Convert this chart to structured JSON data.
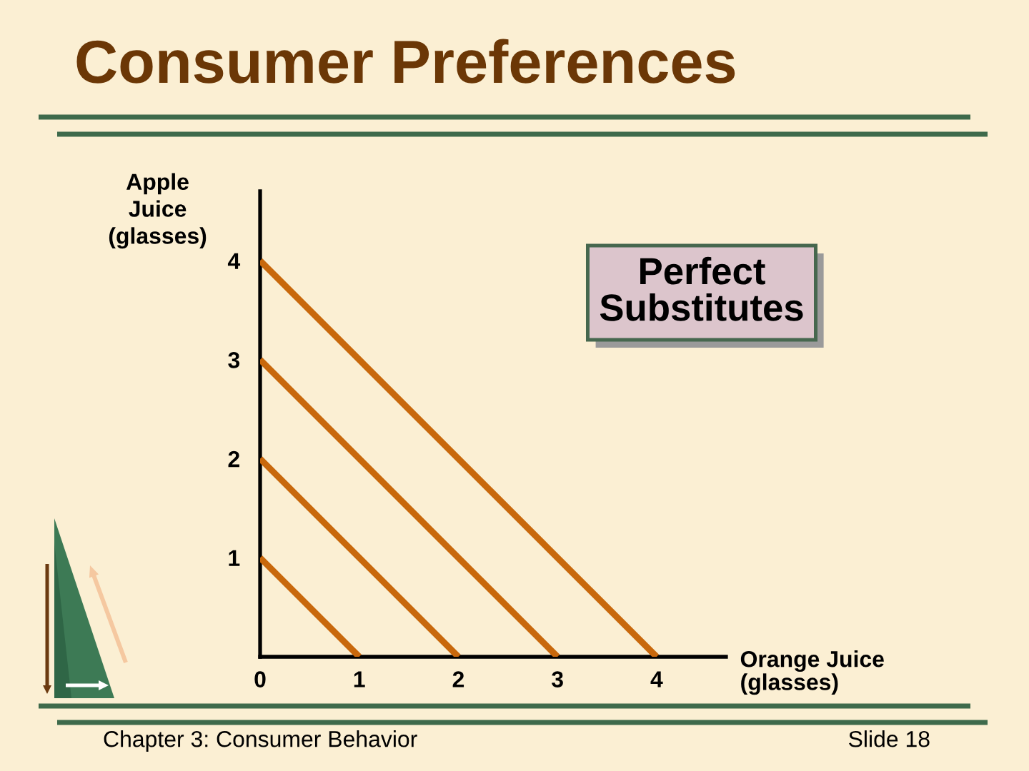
{
  "chart_data": {
    "type": "line",
    "title": "Consumer Preferences",
    "xlabel": "Orange Juice (glasses)",
    "ylabel": "Apple Juice (glasses)",
    "annotations": [
      "Perfect Substitutes",
      "Chapter 3: Consumer Behavior",
      "Slide 18"
    ],
    "series": [
      {
        "x": [
          0,
          1
        ],
        "values": [
          1,
          0
        ],
        "color": "#c8680c"
      },
      {
        "x": [
          0,
          2
        ],
        "values": [
          2,
          0
        ],
        "color": "#c8680c"
      },
      {
        "x": [
          0,
          3
        ],
        "values": [
          3,
          0
        ],
        "color": "#c8680c"
      },
      {
        "x": [
          0,
          4
        ],
        "values": [
          4,
          0
        ],
        "color": "#c8680c"
      }
    ],
    "xlim": [
      0,
      4.7
    ],
    "ylim": [
      0,
      4.7
    ],
    "xticks": [
      0,
      1,
      2,
      3,
      4
    ],
    "yticks": [
      1,
      2,
      3,
      4
    ],
    "line_style": "solid"
  }
}
